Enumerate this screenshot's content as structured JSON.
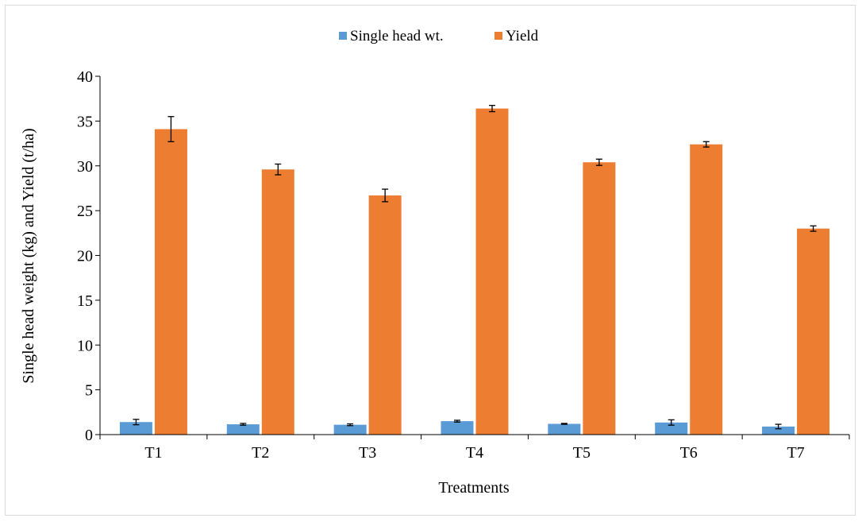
{
  "chart_data": {
    "type": "bar",
    "title": "",
    "xlabel": "Treatments",
    "ylabel": "Single head weight (kg) and Yield (t/ha)",
    "categories": [
      "T1",
      "T2",
      "T3",
      "T4",
      "T5",
      "T6",
      "T7"
    ],
    "ylim": [
      0,
      40
    ],
    "yticks": [
      0,
      5,
      10,
      15,
      20,
      25,
      30,
      35,
      40
    ],
    "ytick_labels": [
      "0",
      "5",
      "10",
      "15",
      "20",
      "25",
      "30",
      "35",
      "40"
    ],
    "grid": false,
    "legend_position": "top-center",
    "series": [
      {
        "name": "Single head wt.",
        "color": "#5b9bd5",
        "values": [
          1.4,
          1.15,
          1.1,
          1.5,
          1.2,
          1.35,
          0.9
        ],
        "errors": [
          0.3,
          0.1,
          0.1,
          0.1,
          0.05,
          0.3,
          0.25
        ]
      },
      {
        "name": "Yield",
        "color": "#ed7d31",
        "values": [
          34.1,
          29.6,
          26.7,
          36.4,
          30.4,
          32.4,
          23.0
        ],
        "errors": [
          1.4,
          0.6,
          0.7,
          0.35,
          0.35,
          0.3,
          0.3
        ]
      }
    ]
  }
}
